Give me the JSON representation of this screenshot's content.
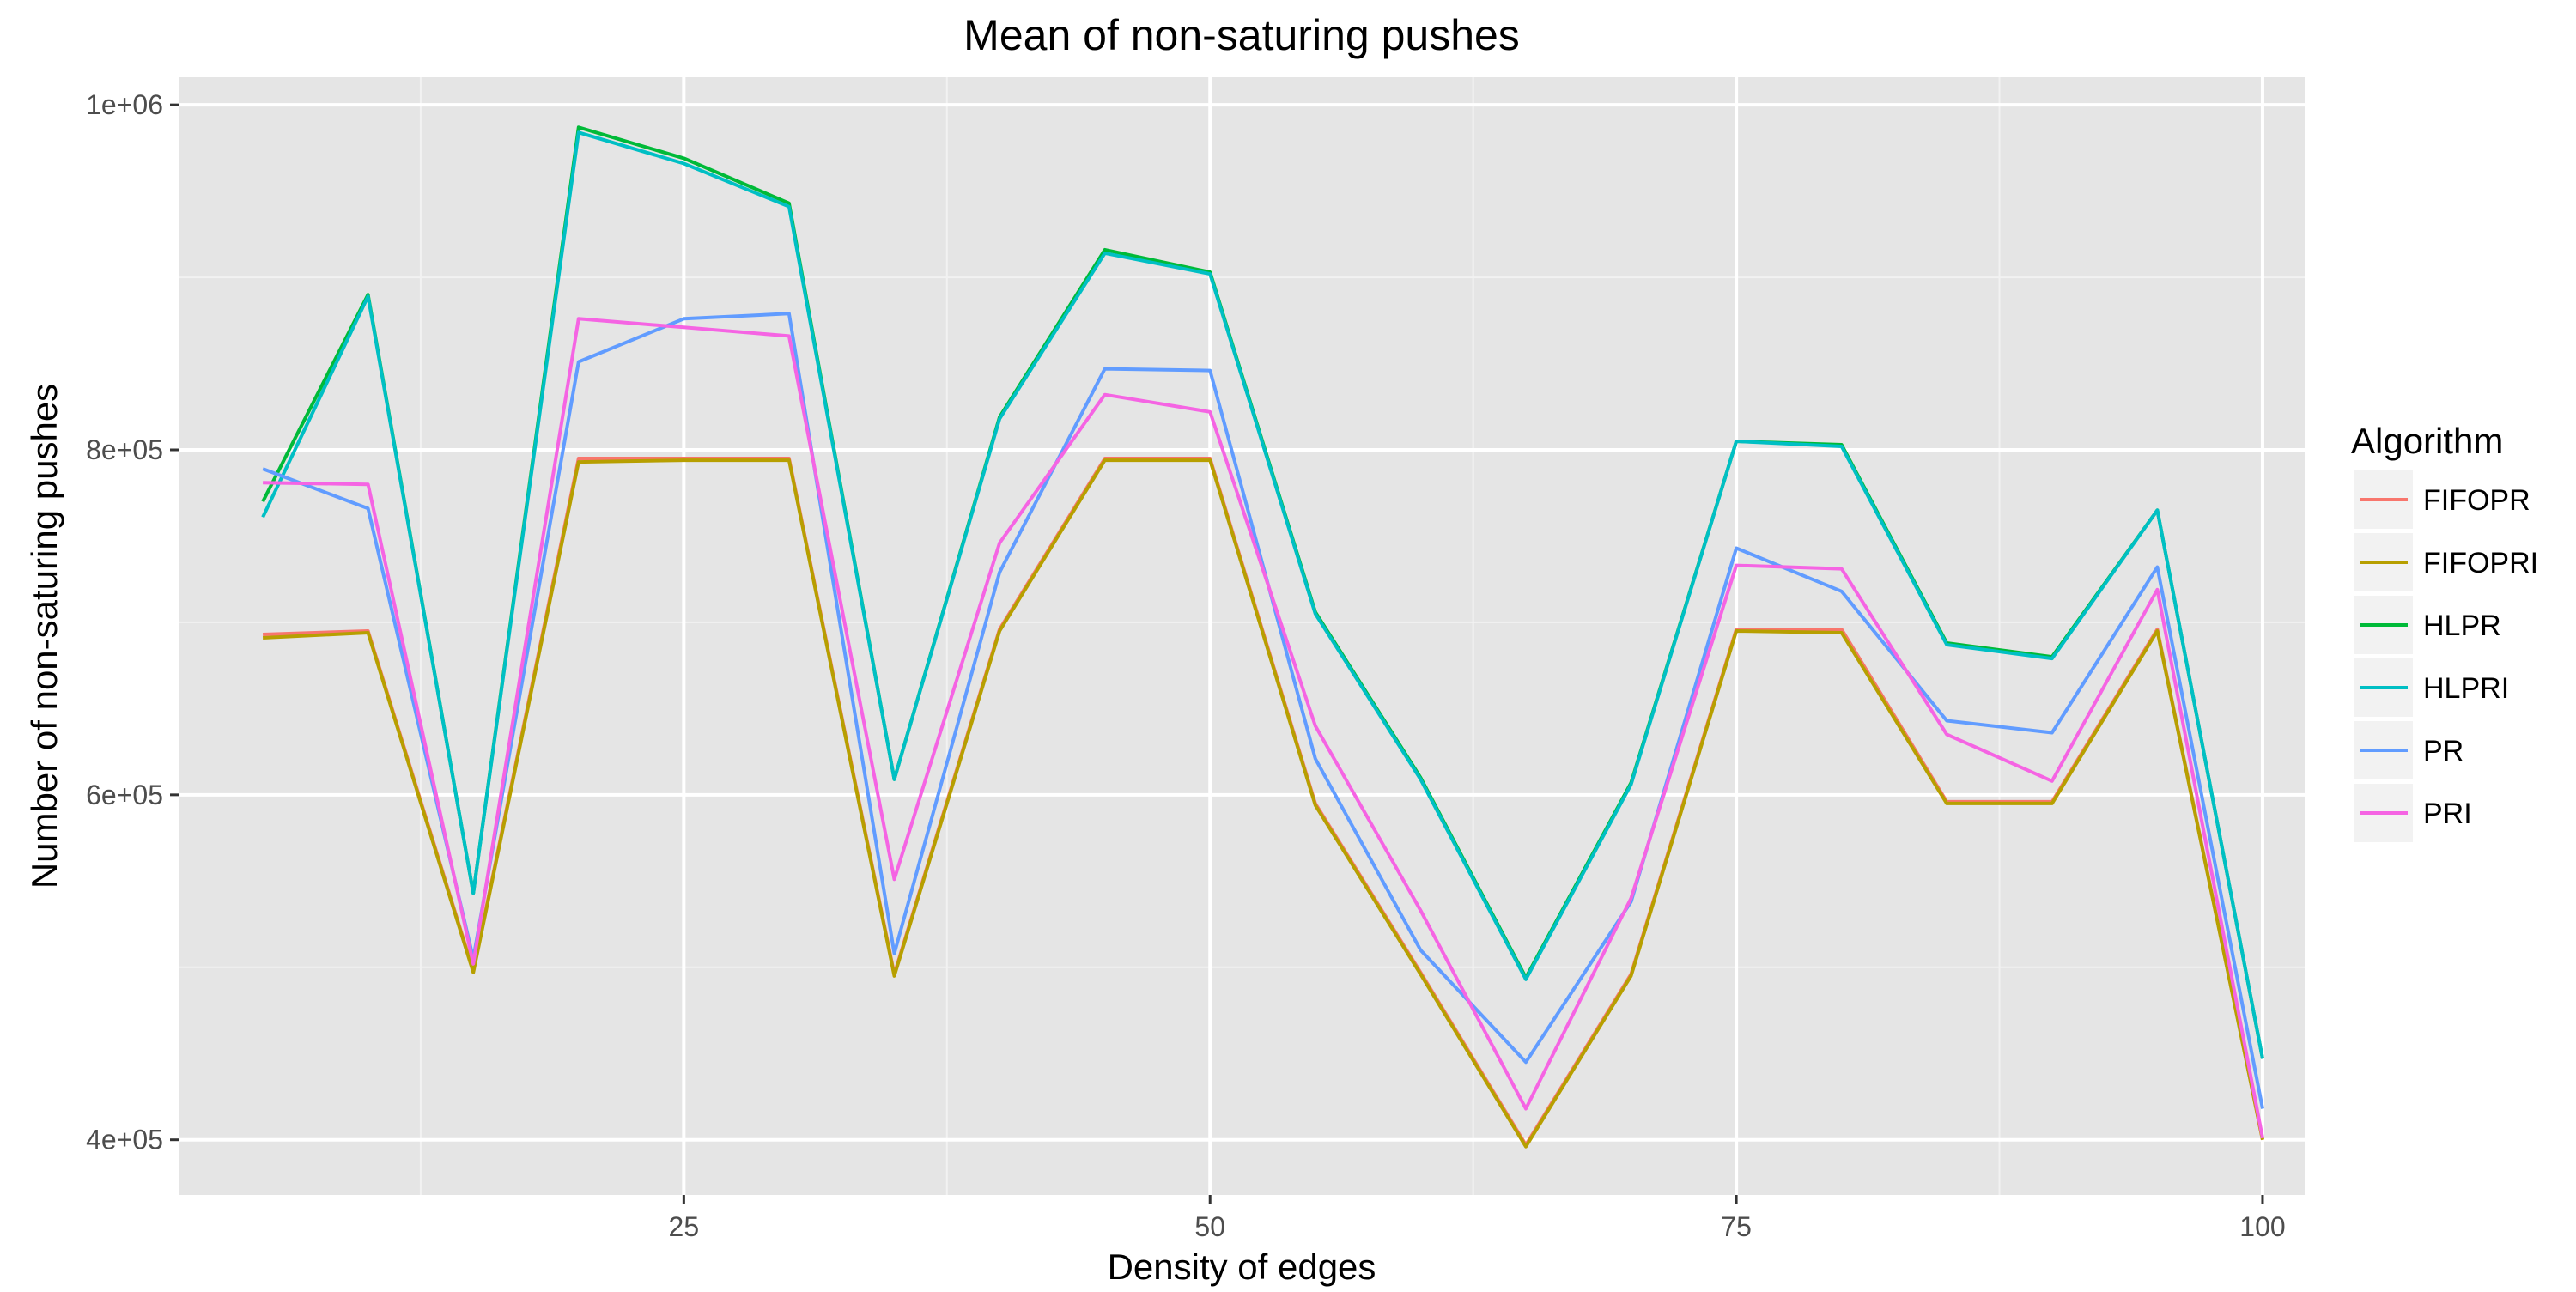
{
  "chart_data": {
    "type": "line",
    "title": "Mean of non-saturing pushes",
    "xlabel": "Density of edges",
    "ylabel": "Number of non-saturing pushes",
    "xlim": [
      1,
      102
    ],
    "ylim": [
      368000,
      1016000
    ],
    "x_ticks": [
      25,
      50,
      75,
      100
    ],
    "x_tick_labels": [
      "25",
      "50",
      "75",
      "100"
    ],
    "y_ticks": [
      400000,
      600000,
      800000,
      1000000
    ],
    "y_tick_labels": [
      "4e+05",
      "6e+05",
      "8e+05",
      "1e+06"
    ],
    "grid": true,
    "legend": {
      "title": "Algorithm",
      "position": "right"
    },
    "x": [
      5,
      10,
      15,
      20,
      25,
      30,
      35,
      40,
      45,
      50,
      55,
      60,
      65,
      70,
      75,
      80,
      85,
      90,
      95,
      100
    ],
    "series": [
      {
        "name": "FIFOPR",
        "color": "#F8766D",
        "values": [
          693000,
          695000,
          498000,
          795000,
          795000,
          795000,
          496000,
          696000,
          795000,
          795000,
          595000,
          497000,
          397000,
          496000,
          696000,
          696000,
          596000,
          596000,
          696000,
          400000
        ]
      },
      {
        "name": "FIFOPRI",
        "color": "#B79F00",
        "values": [
          691000,
          694000,
          497000,
          793000,
          794000,
          794000,
          495000,
          695000,
          794000,
          794000,
          594000,
          496000,
          396000,
          495000,
          695000,
          694000,
          595000,
          595000,
          695000,
          400000
        ]
      },
      {
        "name": "HLPR",
        "color": "#00BA38",
        "values": [
          770000,
          890000,
          543000,
          987000,
          969000,
          943000,
          609000,
          819000,
          916000,
          903000,
          706000,
          610000,
          494000,
          607000,
          805000,
          803000,
          688000,
          680000,
          765000,
          447000
        ]
      },
      {
        "name": "HLPRI",
        "color": "#00BFC4",
        "values": [
          761000,
          889000,
          543000,
          984000,
          966000,
          941000,
          609000,
          818000,
          914000,
          902000,
          705000,
          609000,
          493000,
          606000,
          805000,
          802000,
          687000,
          679000,
          765000,
          447000
        ]
      },
      {
        "name": "PR",
        "color": "#619CFF",
        "values": [
          789000,
          766000,
          505000,
          851000,
          876000,
          879000,
          508000,
          729000,
          847000,
          846000,
          621000,
          510000,
          445000,
          538000,
          743000,
          718000,
          643000,
          636000,
          732000,
          418000
        ]
      },
      {
        "name": "PRI",
        "color": "#F564E3",
        "values": [
          781000,
          780000,
          502000,
          876000,
          871000,
          866000,
          551000,
          746000,
          832000,
          822000,
          640000,
          533000,
          418000,
          540000,
          733000,
          731000,
          635000,
          608000,
          719000,
          401000
        ]
      }
    ]
  }
}
